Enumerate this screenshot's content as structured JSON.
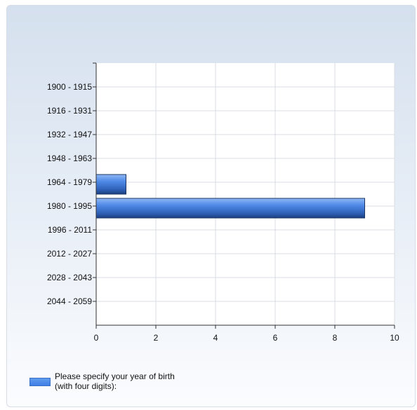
{
  "chart_data": {
    "type": "bar",
    "orientation": "horizontal",
    "categories": [
      "1900 - 1915",
      "1916 - 1931",
      "1932 - 1947",
      "1948 - 1963",
      "1964 - 1979",
      "1980 - 1995",
      "1996 - 2011",
      "2012 - 2027",
      "2028 - 2043",
      "2044 - 2059"
    ],
    "series": [
      {
        "name": "Please specify your year of birth (with four digits):",
        "values": [
          0,
          0,
          0,
          0,
          1,
          9,
          0,
          0,
          0,
          0
        ]
      }
    ],
    "xlim": [
      0,
      10
    ],
    "xticks": [
      0,
      2,
      4,
      6,
      8,
      10
    ],
    "grid": true,
    "legend_position": "bottom-left",
    "bar_color": "#4a86e8"
  }
}
